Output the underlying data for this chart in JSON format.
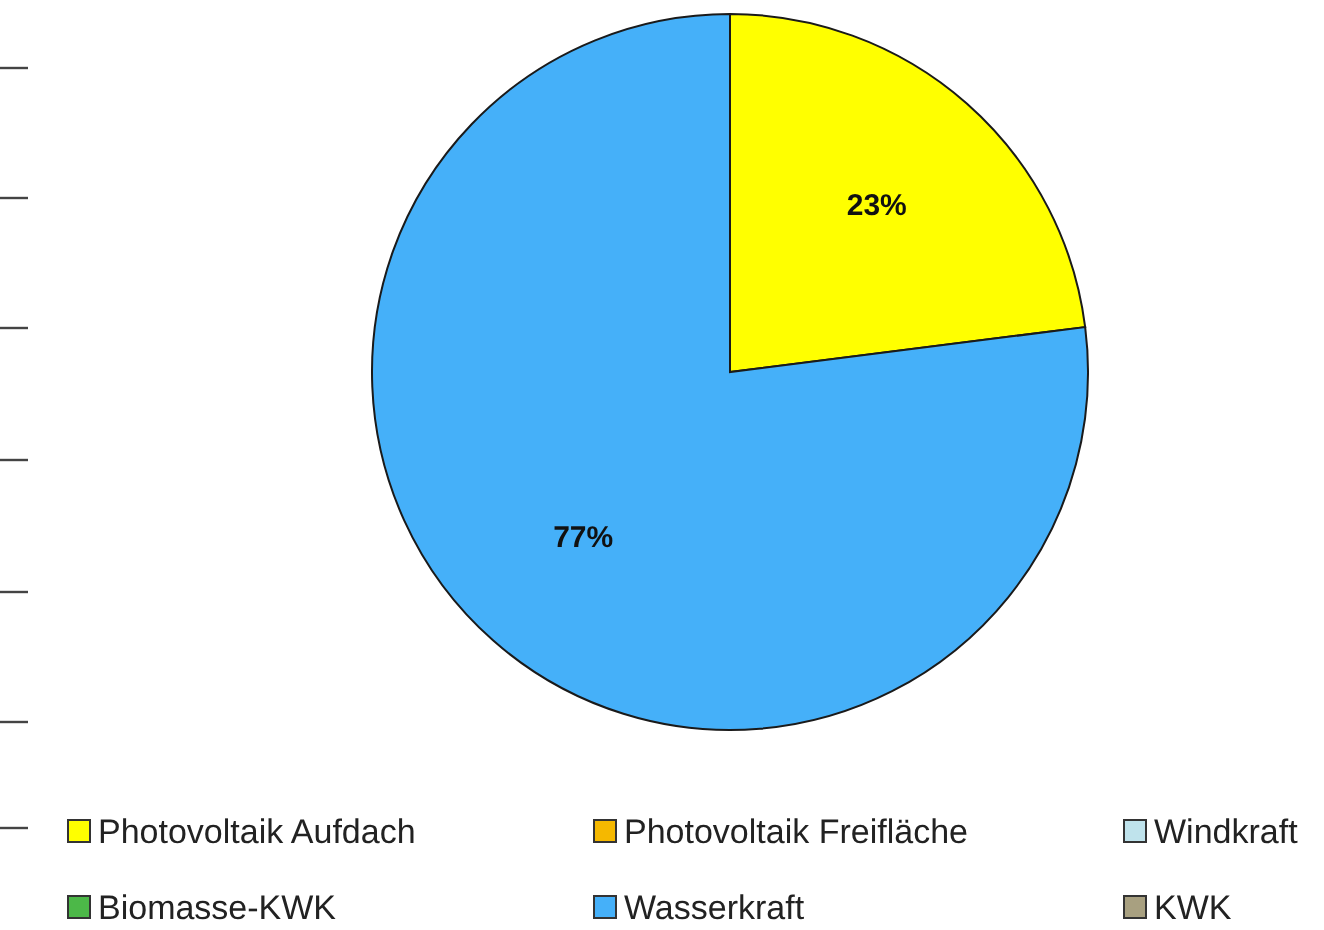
{
  "chart_data": {
    "type": "pie",
    "categories": [
      "Photovoltaik Aufdach",
      "Photovoltaik Freifläche",
      "Windkraft",
      "Biomasse-KWK",
      "Wasserkraft",
      "KWK"
    ],
    "values": [
      23,
      0,
      0,
      0,
      77,
      0
    ],
    "colors": [
      "#ffff00",
      "#f5b800",
      "#bfe3ec",
      "#4cb848",
      "#45b0f9",
      "#a8a080"
    ],
    "value_labels": [
      "23%",
      null,
      null,
      null,
      "77%",
      null
    ],
    "legend": "bottom"
  }
}
